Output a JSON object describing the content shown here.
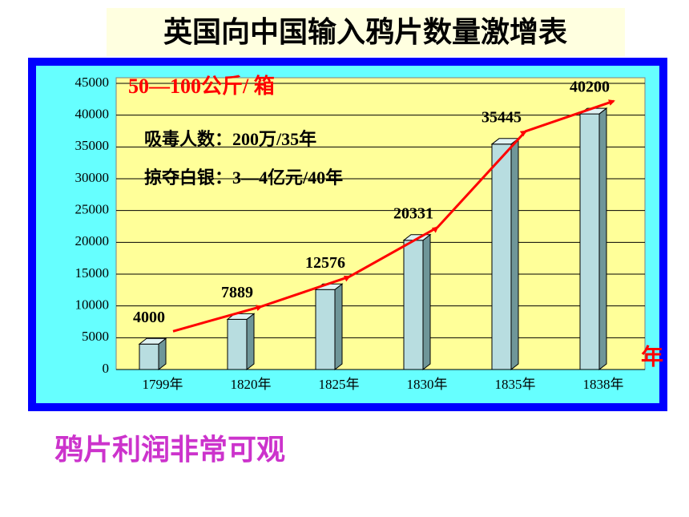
{
  "chart_data": {
    "type": "bar",
    "title": "英国向中国输入鸦片数量激增表",
    "categories": [
      "1799年",
      "1820年",
      "1825年",
      "1830年",
      "1835年",
      "1838年"
    ],
    "values": [
      4000,
      7889,
      12576,
      20331,
      35445,
      40200
    ],
    "color": "#b8dde0",
    "trend_color": "#ff0000",
    "ylim": [
      0,
      45000
    ],
    "yticks": [
      0,
      5000,
      10000,
      15000,
      20000,
      25000,
      30000,
      35000,
      40000,
      45000
    ],
    "grid": true,
    "unit_note": "50—100公斤/ 箱",
    "annotations": [
      "吸毒人数：200万/35年",
      "掠夺白银：3—4亿元/40年"
    ],
    "x_unit": "年"
  },
  "footer": "鸦片利润非常可观"
}
